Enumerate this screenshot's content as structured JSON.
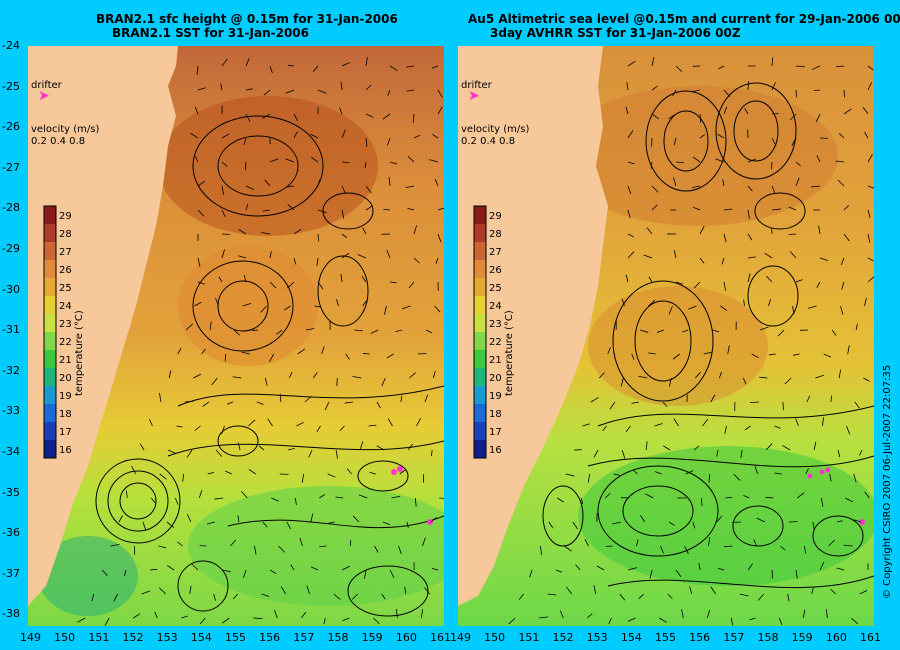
{
  "titles": {
    "left_line1": "BRAN2.1 sfc height @ 0.15m for 31-Jan-2006",
    "left_line2": "BRAN2.1 SST for 31-Jan-2006",
    "right_line1": "Au5 Altimetric sea level  @0.15m and current for 29-Jan-2006 00Z",
    "right_line2": "3day AVHRR SST for 31-Jan-2006 00Z"
  },
  "legend": {
    "drifter": "drifter",
    "velocity_title": "velocity (m/s)",
    "velocity_values": "0.2 0.4 0.8",
    "colorbar_label": "temperature (°C)",
    "colorbar_ticks": [
      "29",
      "28",
      "27",
      "26",
      "25",
      "24",
      "23",
      "22",
      "21",
      "20",
      "19",
      "18",
      "17",
      "16"
    ],
    "colorbar_colors": [
      "#8b1a1a",
      "#b03a2a",
      "#cc6633",
      "#e08a3a",
      "#e8aa30",
      "#e6d030",
      "#c8e040",
      "#7ed84a",
      "#3cc83c",
      "#1eb67a",
      "#1a9ad0",
      "#1c6ad8",
      "#1a3fb8",
      "#10208a"
    ]
  },
  "axes": {
    "lat_labels": [
      "-24",
      "-25",
      "-26",
      "-27",
      "-28",
      "-29",
      "-30",
      "-31",
      "-32",
      "-33",
      "-34",
      "-35",
      "-36",
      "-37",
      "-38"
    ],
    "lon_labels": [
      "149",
      "150",
      "151",
      "152",
      "153",
      "154",
      "155",
      "156",
      "157",
      "158",
      "159",
      "160",
      "161"
    ]
  },
  "copyright": "© Copyright CSIRO 2007  06-Jul-2007 22:07:35",
  "colors": {
    "background": "#00ccff",
    "land": "#f7c89a",
    "drifter": "#ff33cc",
    "warm_high": "#b8521e",
    "warm": "#e09a35",
    "mid": "#e8cc30",
    "cool": "#b8e040",
    "cooler": "#6cd848"
  }
}
